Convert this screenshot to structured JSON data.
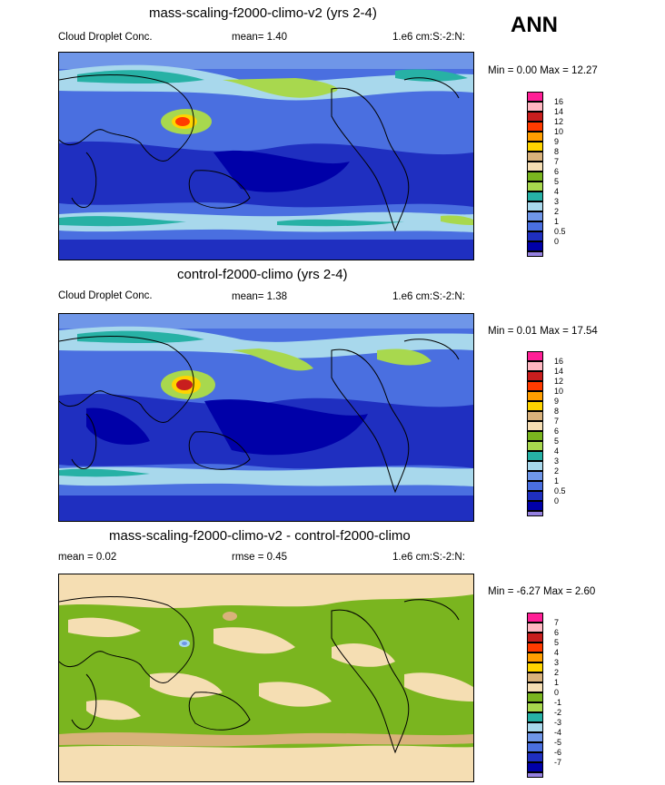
{
  "header": {
    "season": "ANN"
  },
  "colors": {
    "ocean_blue": "#1f40c8",
    "water_blue": "#4a6fe0",
    "light_blue": "#a8c8f0",
    "teal": "#27b1a5",
    "green": "#7ab51f",
    "tan": "#f5deb3"
  },
  "panels": [
    {
      "title": "mass-scaling-f2000-climo-v2 (yrs 2-4)",
      "left_label": "Cloud Droplet Conc.",
      "mean_text": "mean=   1.40",
      "units": "1.e6 cm:S:-2:N:",
      "minmax": "Min =   0.00 Max =  12.27",
      "levels": [
        "16",
        "14",
        "12",
        "10",
        "9",
        "8",
        "7",
        "6",
        "5",
        "4",
        "3",
        "2",
        "1",
        "0.5",
        "0"
      ],
      "colors": [
        "#ff1f96",
        "#ffb6c1",
        "#c81e1e",
        "#ff3b00",
        "#ff9e00",
        "#ffd400",
        "#d9b27b",
        "#f5deb3",
        "#7ab51f",
        "#a8d84e",
        "#27b1a5",
        "#a8d8ec",
        "#6f96e8",
        "#4a6fe0",
        "#1f2fc0",
        "#0000a8",
        "#9480e0"
      ]
    },
    {
      "title": "control-f2000-climo (yrs 2-4)",
      "left_label": "Cloud Droplet Conc.",
      "mean_text": "mean=   1.38",
      "units": "1.e6 cm:S:-2:N:",
      "minmax": "Min =   0.01 Max =  17.54",
      "levels": [
        "16",
        "14",
        "12",
        "10",
        "9",
        "8",
        "7",
        "6",
        "5",
        "4",
        "3",
        "2",
        "1",
        "0.5",
        "0"
      ],
      "colors": [
        "#ff1f96",
        "#ffb6c1",
        "#c81e1e",
        "#ff3b00",
        "#ff9e00",
        "#ffd400",
        "#d9b27b",
        "#f5deb3",
        "#7ab51f",
        "#a8d84e",
        "#27b1a5",
        "#a8d8ec",
        "#6f96e8",
        "#4a6fe0",
        "#1f2fc0",
        "#0000a8",
        "#9480e0"
      ]
    },
    {
      "title": "mass-scaling-f2000-climo-v2 - control-f2000-climo",
      "left_label": "mean =   0.02",
      "mean_text": "rmse =   0.45",
      "units": "1.e6 cm:S:-2:N:",
      "minmax": "Min =  -6.27 Max =   2.60",
      "levels": [
        "7",
        "6",
        "5",
        "4",
        "3",
        "2",
        "1",
        "0",
        "-1",
        "-2",
        "-3",
        "-4",
        "-5",
        "-6",
        "-7"
      ],
      "colors": [
        "#ff1f96",
        "#ffb6c1",
        "#c81e1e",
        "#ff3b00",
        "#ff9e00",
        "#ffd400",
        "#d9b27b",
        "#f5deb3",
        "#7ab51f",
        "#a8d84e",
        "#27b1a5",
        "#a8d8ec",
        "#6f96e8",
        "#4a6fe0",
        "#1f2fc0",
        "#0000a8",
        "#9480e0"
      ]
    }
  ],
  "chart_data": [
    {
      "type": "heatmap",
      "title": "mass-scaling-f2000-climo-v2 (yrs 2-4)",
      "variable": "Cloud Droplet Conc.",
      "units": "1.e6 cm:S:-2:N:",
      "mean": 1.4,
      "min": 0.0,
      "max": 12.27,
      "contour_levels": [
        0,
        0.5,
        1,
        2,
        3,
        4,
        5,
        6,
        7,
        8,
        9,
        10,
        12,
        14,
        16
      ]
    },
    {
      "type": "heatmap",
      "title": "control-f2000-climo (yrs 2-4)",
      "variable": "Cloud Droplet Conc.",
      "units": "1.e6 cm:S:-2:N:",
      "mean": 1.38,
      "min": 0.01,
      "max": 17.54,
      "contour_levels": [
        0,
        0.5,
        1,
        2,
        3,
        4,
        5,
        6,
        7,
        8,
        9,
        10,
        12,
        14,
        16
      ]
    },
    {
      "type": "heatmap",
      "title": "mass-scaling-f2000-climo-v2 - control-f2000-climo",
      "units": "1.e6 cm:S:-2:N:",
      "mean": 0.02,
      "rmse": 0.45,
      "min": -6.27,
      "max": 2.6,
      "contour_levels": [
        -7,
        -6,
        -5,
        -4,
        -3,
        -2,
        -1,
        0,
        1,
        2,
        3,
        4,
        5,
        6,
        7
      ]
    }
  ]
}
